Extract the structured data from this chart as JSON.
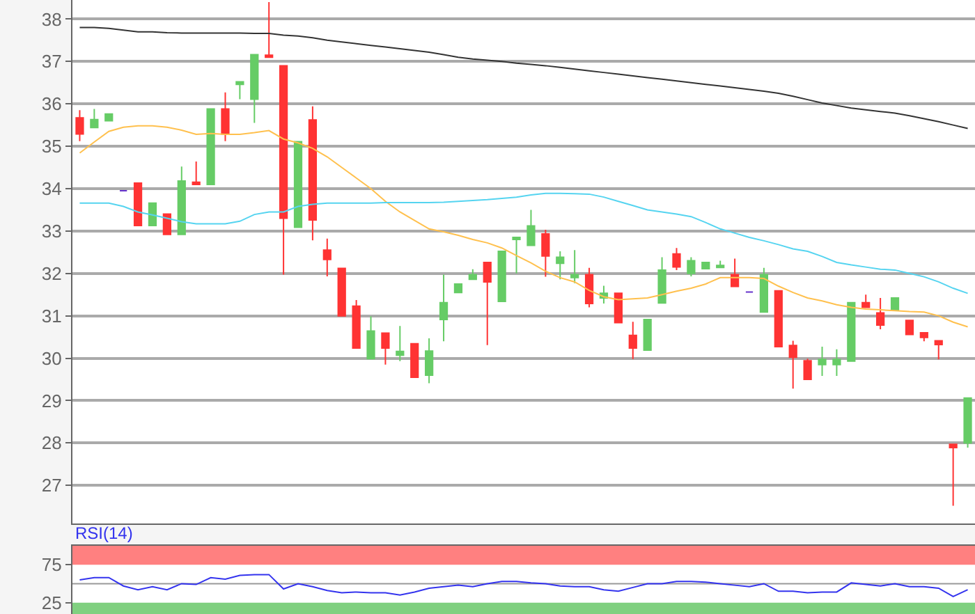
{
  "chart_data": [
    {
      "type": "candlestick",
      "categories": [
        null,
        null,
        null,
        null,
        null,
        null,
        null,
        null,
        null,
        null,
        null,
        null,
        null,
        null,
        null,
        null,
        null,
        null,
        null,
        null,
        null,
        null,
        null,
        null,
        null,
        null,
        null,
        null,
        null,
        null,
        null,
        null,
        null,
        null,
        null,
        null,
        null,
        null,
        null,
        null,
        null,
        null,
        null,
        null,
        null,
        null,
        null,
        null,
        null,
        null,
        null,
        null,
        null,
        null,
        null,
        null,
        null,
        null,
        null,
        null,
        null,
        null
      ],
      "ohlc": [
        [
          35.67,
          35.85,
          35.12,
          35.29
        ],
        [
          35.44,
          35.88,
          35.44,
          35.63
        ],
        [
          35.6,
          35.76,
          35.6,
          35.76
        ],
        [
          33.95,
          33.95,
          33.95,
          33.95
        ],
        [
          34.13,
          34.13,
          33.13,
          33.13
        ],
        [
          33.13,
          33.66,
          33.13,
          33.66
        ],
        [
          33.4,
          33.4,
          32.92,
          32.92
        ],
        [
          32.92,
          34.52,
          32.92,
          34.18
        ],
        [
          34.15,
          34.64,
          34.1,
          34.1
        ],
        [
          34.1,
          35.88,
          34.1,
          35.88
        ],
        [
          35.88,
          36.27,
          35.12,
          35.29
        ],
        [
          36.46,
          36.52,
          36.11,
          36.52
        ],
        [
          36.11,
          37.16,
          35.55,
          37.16
        ],
        [
          37.15,
          38.4,
          37.1,
          37.1
        ],
        [
          36.9,
          36.9,
          31.97,
          33.3
        ],
        [
          33.09,
          35.11,
          33.09,
          35.11
        ],
        [
          35.62,
          35.94,
          32.78,
          33.26
        ],
        [
          32.55,
          32.82,
          31.93,
          32.33
        ],
        [
          32.12,
          32.12,
          31.0,
          31.0
        ],
        [
          31.23,
          31.37,
          30.24,
          30.24
        ],
        [
          29.99,
          30.99,
          29.99,
          30.64
        ],
        [
          30.59,
          30.59,
          29.85,
          30.24
        ],
        [
          30.07,
          30.76,
          29.93,
          30.16
        ],
        [
          30.34,
          30.34,
          29.55,
          29.55
        ],
        [
          29.6,
          30.47,
          29.41,
          30.17
        ],
        [
          30.91,
          31.97,
          30.4,
          31.31
        ],
        [
          31.55,
          31.75,
          31.55,
          31.75
        ],
        [
          31.86,
          32.1,
          31.86,
          31.97
        ],
        [
          32.26,
          32.26,
          30.31,
          31.8
        ],
        [
          31.34,
          32.52,
          31.34,
          32.52
        ],
        [
          32.8,
          32.85,
          32.0,
          32.85
        ],
        [
          32.66,
          33.5,
          32.66,
          33.12
        ],
        [
          32.93,
          33.03,
          31.92,
          32.41
        ],
        [
          32.24,
          32.52,
          31.86,
          32.38
        ],
        [
          31.9,
          32.55,
          31.77,
          31.97
        ],
        [
          31.97,
          32.13,
          31.2,
          31.29
        ],
        [
          31.42,
          31.71,
          31.29,
          31.53
        ],
        [
          31.53,
          31.53,
          30.84,
          30.84
        ],
        [
          30.54,
          30.86,
          29.98,
          30.24
        ],
        [
          30.19,
          30.91,
          30.19,
          30.91
        ],
        [
          31.3,
          32.38,
          31.3,
          32.08
        ],
        [
          32.46,
          32.6,
          32.08,
          32.15
        ],
        [
          32.0,
          32.38,
          31.93,
          32.3
        ],
        [
          32.11,
          32.26,
          32.11,
          32.26
        ],
        [
          32.14,
          32.3,
          32.14,
          32.19
        ],
        [
          31.97,
          32.35,
          31.69,
          31.69
        ],
        [
          31.56,
          31.56,
          31.56,
          31.56
        ],
        [
          31.09,
          32.13,
          31.09,
          31.97
        ],
        [
          31.59,
          31.59,
          30.27,
          30.27
        ],
        [
          30.3,
          30.41,
          29.28,
          30.02
        ],
        [
          29.94,
          29.99,
          29.5,
          29.5
        ],
        [
          29.85,
          30.27,
          29.58,
          29.97
        ],
        [
          29.85,
          30.21,
          29.58,
          29.97
        ],
        [
          29.93,
          31.31,
          29.93,
          31.31
        ],
        [
          31.31,
          31.5,
          31.2,
          31.2
        ],
        [
          31.07,
          31.42,
          30.68,
          30.78
        ],
        [
          31.14,
          31.42,
          31.14,
          31.42
        ],
        [
          30.89,
          30.89,
          30.56,
          30.56
        ],
        [
          30.6,
          30.6,
          30.4,
          30.49
        ],
        [
          30.41,
          30.41,
          29.97,
          30.32
        ],
        [
          27.97,
          27.97,
          26.52,
          27.89
        ],
        [
          28.0,
          29.06,
          27.89,
          29.06
        ]
      ],
      "colors": [
        "#ff3333",
        "#66cc66",
        "#66cc66",
        "#6633cc",
        "#ff3333",
        "#66cc66",
        "#ff3333",
        "#66cc66",
        "#ff3333",
        "#66cc66",
        "#ff3333",
        "#66cc66",
        "#66cc66",
        "#ff3333",
        "#ff3333",
        "#66cc66",
        "#ff3333",
        "#ff3333",
        "#ff3333",
        "#ff3333",
        "#66cc66",
        "#ff3333",
        "#66cc66",
        "#ff3333",
        "#66cc66",
        "#66cc66",
        "#66cc66",
        "#66cc66",
        "#ff3333",
        "#66cc66",
        "#66cc66",
        "#66cc66",
        "#ff3333",
        "#66cc66",
        "#66cc66",
        "#ff3333",
        "#66cc66",
        "#ff3333",
        "#ff3333",
        "#66cc66",
        "#66cc66",
        "#ff3333",
        "#66cc66",
        "#66cc66",
        "#66cc66",
        "#ff3333",
        "#6633cc",
        "#66cc66",
        "#ff3333",
        "#ff3333",
        "#ff3333",
        "#66cc66",
        "#66cc66",
        "#66cc66",
        "#ff3333",
        "#ff3333",
        "#66cc66",
        "#ff3333",
        "#ff3333",
        "#ff3333",
        "#ff3333",
        "#66cc66"
      ],
      "series": [
        {
          "type": "line",
          "color": "#333333",
          "values": [
            37.8,
            37.8,
            37.78,
            37.74,
            37.7,
            37.7,
            37.68,
            37.67,
            37.67,
            37.67,
            37.67,
            37.67,
            37.66,
            37.66,
            37.62,
            37.6,
            37.56,
            37.5,
            37.46,
            37.42,
            37.38,
            37.34,
            37.3,
            37.26,
            37.22,
            37.16,
            37.1,
            37.06,
            37.03,
            37.0,
            36.96,
            36.93,
            36.9,
            36.86,
            36.82,
            36.78,
            36.74,
            36.7,
            36.66,
            36.62,
            36.58,
            36.54,
            36.5,
            36.46,
            36.42,
            36.38,
            36.34,
            36.3,
            36.25,
            36.18,
            36.1,
            36.02,
            35.96,
            35.9,
            35.86,
            35.82,
            35.78,
            35.72,
            35.65,
            35.58,
            35.5,
            35.42
          ]
        },
        {
          "type": "line",
          "color": "#ffc04d",
          "values": [
            34.84,
            35.1,
            35.35,
            35.45,
            35.48,
            35.48,
            35.45,
            35.38,
            35.28,
            35.3,
            35.28,
            35.28,
            35.32,
            35.37,
            35.17,
            35.08,
            34.95,
            34.75,
            34.5,
            34.25,
            34.0,
            33.7,
            33.45,
            33.25,
            33.05,
            32.98,
            32.9,
            32.8,
            32.72,
            32.6,
            32.42,
            32.25,
            32.05,
            31.9,
            31.8,
            31.6,
            31.45,
            31.38,
            31.4,
            31.42,
            31.5,
            31.58,
            31.65,
            31.75,
            31.9,
            31.9,
            31.9,
            31.88,
            31.7,
            31.55,
            31.42,
            31.35,
            31.26,
            31.2,
            31.16,
            31.14,
            31.12,
            31.1,
            31.09,
            31.0,
            30.85,
            30.74
          ]
        },
        {
          "type": "line",
          "color": "#55d4f0",
          "values": [
            33.66,
            33.66,
            33.66,
            33.58,
            33.45,
            33.38,
            33.3,
            33.22,
            33.17,
            33.17,
            33.17,
            33.23,
            33.39,
            33.45,
            33.45,
            33.58,
            33.63,
            33.66,
            33.66,
            33.66,
            33.66,
            33.67,
            33.67,
            33.67,
            33.67,
            33.68,
            33.7,
            33.72,
            33.74,
            33.77,
            33.8,
            33.85,
            33.89,
            33.89,
            33.88,
            33.87,
            33.8,
            33.7,
            33.6,
            33.5,
            33.45,
            33.4,
            33.34,
            33.2,
            33.05,
            32.95,
            32.85,
            32.77,
            32.68,
            32.58,
            32.52,
            32.4,
            32.26,
            32.2,
            32.15,
            32.1,
            32.08,
            32.0,
            31.92,
            31.8,
            31.65,
            31.53
          ]
        }
      ],
      "ylim": [
        26.1,
        38.45
      ],
      "yticks": [
        27,
        28,
        29,
        30,
        31,
        32,
        33,
        34,
        35,
        36,
        37,
        38
      ],
      "grid": "y",
      "tick_labels": "y"
    },
    {
      "type": "line",
      "title": "RSI(14)",
      "categories": [
        null,
        null,
        null,
        null,
        null,
        null,
        null,
        null,
        null,
        null,
        null,
        null,
        null,
        null,
        null,
        null,
        null,
        null,
        null,
        null,
        null,
        null,
        null,
        null,
        null,
        null,
        null,
        null,
        null,
        null,
        null,
        null,
        null,
        null,
        null,
        null,
        null,
        null,
        null,
        null,
        null,
        null,
        null,
        null,
        null,
        null,
        null,
        null,
        null,
        null,
        null,
        null,
        null,
        null,
        null,
        null,
        null,
        null,
        null,
        null,
        null,
        null
      ],
      "series": [
        {
          "color": "#3333ee",
          "values": [
            55,
            58,
            58,
            47,
            42,
            46,
            42,
            50,
            49,
            58,
            56,
            61,
            62,
            62,
            43,
            50,
            46,
            41,
            38,
            39,
            38,
            38,
            35,
            39,
            44,
            46,
            48,
            46,
            50,
            53,
            53,
            51,
            50,
            47,
            46,
            46,
            42,
            40,
            45,
            50,
            50,
            53,
            53,
            52,
            50,
            48,
            46,
            50,
            40,
            40,
            38,
            39,
            39,
            51,
            49,
            47,
            50,
            46,
            46,
            44,
            33,
            42
          ]
        }
      ],
      "bands": [
        {
          "axis": "y",
          "from": 75,
          "to": 100,
          "color": "#ff8080"
        },
        {
          "axis": "y",
          "from": 10,
          "to": 25,
          "color": "#80d080"
        }
      ],
      "ref_lines": [
        {
          "axis": "y",
          "value": 50,
          "color": "#999999"
        }
      ],
      "ylim": [
        10,
        100
      ],
      "yticks": [
        25,
        75
      ],
      "grid": false,
      "tick_labels": "y"
    }
  ]
}
